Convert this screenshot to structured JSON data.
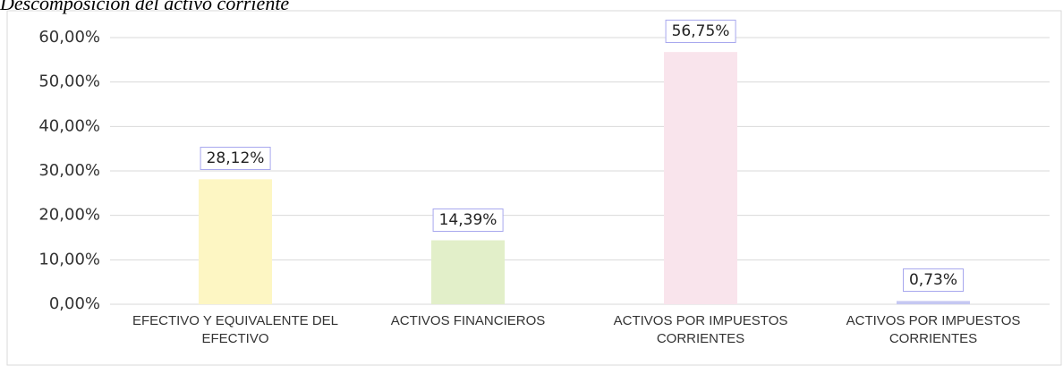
{
  "chart_data": {
    "type": "bar",
    "title": "Descomposición del activo corriente",
    "categories": [
      "EFECTIVO Y EQUIVALENTE DEL EFECTIVO",
      "ACTIVOS FINANCIEROS",
      "ACTIVOS POR IMPUESTOS CORRIENTES",
      "ACTIVOS POR IMPUESTOS CORRIENTES"
    ],
    "values": [
      28.12,
      14.39,
      56.75,
      0.73
    ],
    "value_labels": [
      "28,12%",
      "14,39%",
      "56,75%",
      "0,73%"
    ],
    "colors": [
      "#fdf6c3",
      "#e2efc9",
      "#f9e4ec",
      "#c5c8f2"
    ],
    "ylim": [
      0,
      60
    ],
    "yticks": [
      {
        "value": 0,
        "label": "0,00%"
      },
      {
        "value": 10,
        "label": "10,00%"
      },
      {
        "value": 20,
        "label": "20,00%"
      },
      {
        "value": 30,
        "label": "30,00%"
      },
      {
        "value": 40,
        "label": "40,00%"
      },
      {
        "value": 50,
        "label": "50,00%"
      },
      {
        "value": 60,
        "label": "60,00%"
      }
    ],
    "grid": true
  }
}
